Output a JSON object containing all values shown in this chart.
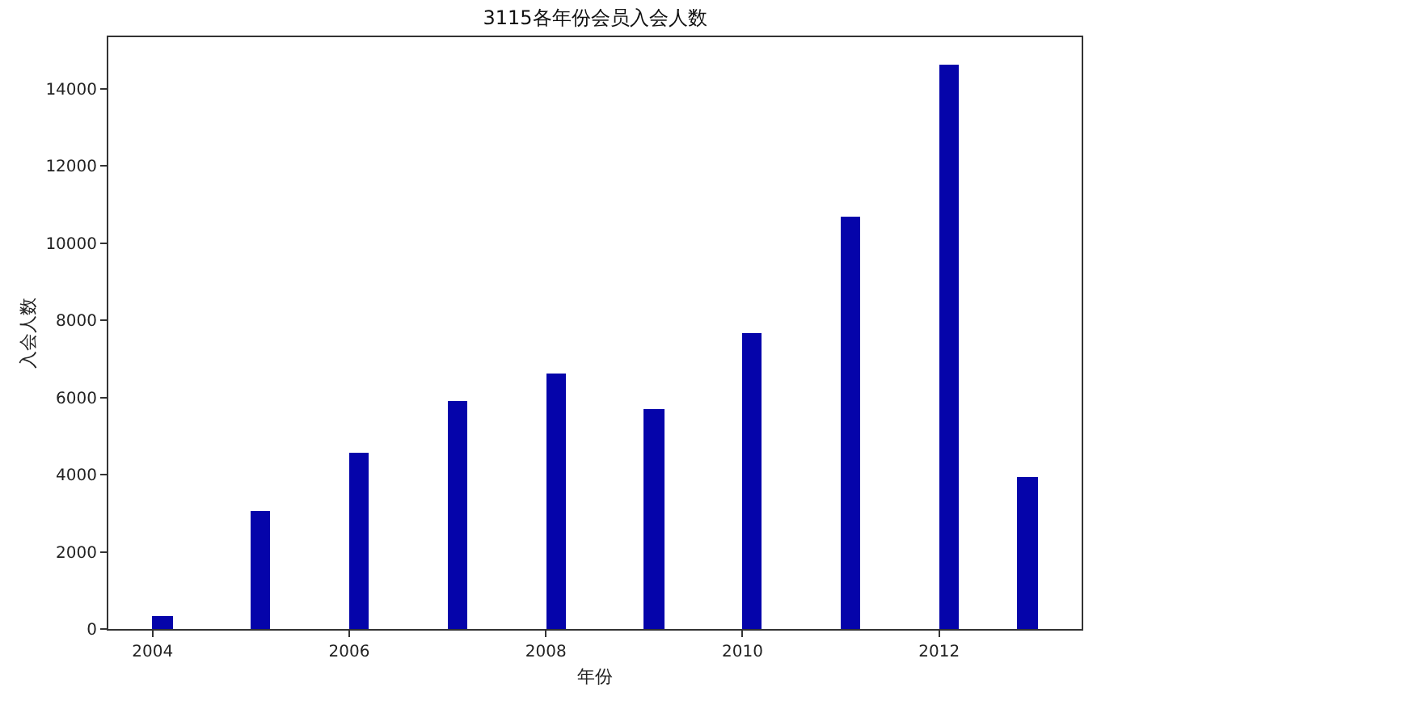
{
  "chart_data": {
    "type": "histogram",
    "title": "3115各年份会员入会人数",
    "xlabel": "年份",
    "ylabel": "入会人数",
    "bins": [
      2004,
      2004.2,
      2004.4,
      2004.6,
      2004.8,
      2005,
      2005.2,
      2005.4,
      2005.6,
      2005.8,
      2006,
      2006.2,
      2006.4,
      2006.6,
      2006.8,
      2007,
      2007.2,
      2007.4,
      2007.6,
      2007.8,
      2008,
      2008.2,
      2008.4,
      2008.6,
      2008.8,
      2009,
      2009.2,
      2009.4,
      2009.6,
      2009.8,
      2010,
      2010.2,
      2010.4,
      2010.6,
      2010.8,
      2011,
      2011.2,
      2011.4,
      2011.6,
      2011.8,
      2012,
      2012.2,
      2012.4,
      2012.6,
      2012.8,
      2013
    ],
    "values": [
      350,
      0,
      0,
      0,
      0,
      3050,
      0,
      0,
      0,
      0,
      4550,
      0,
      0,
      0,
      0,
      5900,
      0,
      0,
      0,
      0,
      6600,
      0,
      0,
      0,
      0,
      5700,
      0,
      0,
      0,
      0,
      7650,
      0,
      0,
      0,
      0,
      10700,
      0,
      0,
      0,
      0,
      14600,
      0,
      0,
      0,
      3950
    ],
    "color": "#0504aa",
    "xlim": [
      2003.55,
      2013.45
    ],
    "ylim": [
      0,
      15330
    ],
    "xticks": [
      2004,
      2006,
      2008,
      2010,
      2012
    ],
    "yticks": [
      0,
      2000,
      4000,
      6000,
      8000,
      10000,
      12000,
      14000
    ]
  }
}
